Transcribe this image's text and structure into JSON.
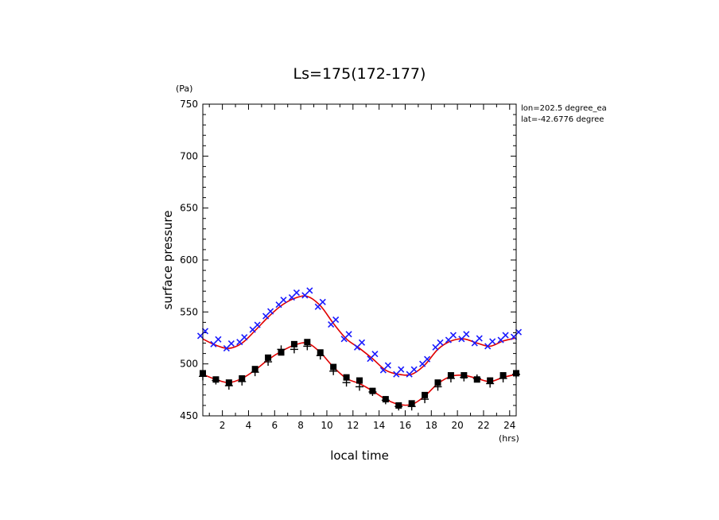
{
  "chart_data": {
    "type": "scatter",
    "title": "Ls=175(172-177)",
    "xlabel": "local time",
    "xunit": "(hrs)",
    "ylabel": "surface pressure",
    "yunit": "(Pa)",
    "annotations": [
      "lon=202.5 degree_ea",
      "lat=-42.6776 degree"
    ],
    "xlim": [
      0.5,
      24.5
    ],
    "ylim": [
      450,
      750
    ],
    "xticks": [
      2,
      4,
      6,
      8,
      10,
      12,
      14,
      16,
      18,
      20,
      22,
      24
    ],
    "yticks": [
      450,
      500,
      550,
      600,
      650,
      700,
      750
    ],
    "grid": false,
    "colors": {
      "upper_markers": "#1a1aff",
      "lower_markers": "#000000",
      "fit": "#e00000"
    },
    "series": [
      {
        "marker": "x",
        "color": "#1a1aff",
        "x": [
          0.5,
          1.5,
          2.5,
          3.5,
          4.5,
          5.5,
          6.5,
          7.5,
          8.5,
          9.5,
          10.5,
          11.5,
          12.5,
          13.5,
          14.5,
          15.5,
          16.5,
          17.5,
          18.5,
          19.5,
          20.5,
          21.5,
          22.5,
          23.5,
          24.5
        ],
        "y": [
          527,
          519,
          515,
          521,
          533,
          546,
          557,
          564,
          566,
          555,
          538,
          524,
          516,
          505,
          494,
          490,
          490,
          500,
          516,
          523,
          524,
          520,
          517,
          523,
          526
        ]
      },
      {
        "marker": "square",
        "color": "#000000",
        "x": [
          0.5,
          1.5,
          2.5,
          3.5,
          4.5,
          5.5,
          6.5,
          7.5,
          8.5,
          9.5,
          10.5,
          11.5,
          12.5,
          13.5,
          14.5,
          15.5,
          16.5,
          17.5,
          18.5,
          19.5,
          20.5,
          21.5,
          22.5,
          23.5,
          24.5
        ],
        "y": [
          491,
          485,
          482,
          486,
          495,
          506,
          511,
          519,
          521,
          511,
          497,
          487,
          484,
          474,
          466,
          460,
          462,
          470,
          482,
          489,
          489,
          485,
          484,
          489,
          491
        ]
      },
      {
        "marker": "plus",
        "color": "#000000",
        "x": [
          0.5,
          1.5,
          2.5,
          3.5,
          4.5,
          5.5,
          6.5,
          7.5,
          8.5,
          9.5,
          10.5,
          11.5,
          12.5,
          13.5,
          14.5,
          15.5,
          16.5,
          17.5,
          18.5,
          19.5,
          20.5,
          21.5,
          22.5,
          23.5,
          24.5
        ],
        "y": [
          488,
          484,
          479,
          483,
          492,
          502,
          514,
          514,
          517,
          508,
          493,
          482,
          478,
          473,
          465,
          459,
          459,
          466,
          478,
          486,
          487,
          486,
          481,
          486,
          490
        ]
      }
    ],
    "fits": [
      {
        "color": "#e00000",
        "x": [
          0.5,
          1.5,
          2.5,
          3.5,
          4.5,
          5.5,
          6.5,
          7.5,
          8.5,
          9.5,
          10.5,
          11.5,
          12.5,
          13.5,
          14.5,
          15.5,
          16.5,
          17.5,
          18.5,
          19.5,
          20.5,
          21.5,
          22.5,
          23.5,
          24.5
        ],
        "y": [
          524,
          518,
          515,
          520,
          532,
          545,
          556,
          563,
          565,
          556,
          539,
          524,
          515,
          505,
          494,
          490,
          490,
          499,
          514,
          522,
          524,
          520,
          517,
          522,
          525
        ]
      },
      {
        "color": "#e00000",
        "x": [
          0.5,
          1.5,
          2.5,
          3.5,
          4.5,
          5.5,
          6.5,
          7.5,
          8.5,
          9.5,
          10.5,
          11.5,
          12.5,
          13.5,
          14.5,
          15.5,
          16.5,
          17.5,
          18.5,
          19.5,
          20.5,
          21.5,
          22.5,
          23.5,
          24.5
        ],
        "y": [
          490,
          485,
          482,
          486,
          494,
          504,
          512,
          518,
          520,
          511,
          497,
          486,
          481,
          474,
          466,
          461,
          461,
          469,
          481,
          488,
          489,
          486,
          483,
          487,
          490
        ]
      }
    ]
  }
}
